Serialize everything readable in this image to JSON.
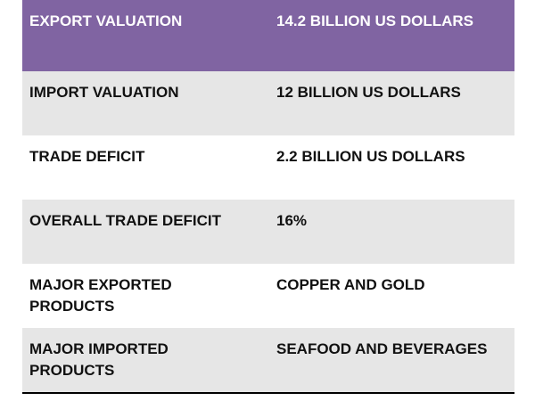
{
  "table": {
    "rows": [
      [
        "EXPORT VALUATION",
        "14.2 BILLION US DOLLARS"
      ],
      [
        "IMPORT VALUATION",
        "12 BILLION US DOLLARS"
      ],
      [
        "TRADE DEFICIT",
        "2.2 BILLION US DOLLARS"
      ],
      [
        "OVERALL TRADE DEFICIT",
        "16%"
      ],
      [
        "MAJOR EXPORTED PRODUCTS",
        "COPPER AND GOLD"
      ],
      [
        "MAJOR IMPORTED PRODUCTS",
        "SEAFOOD AND BEVERAGES"
      ]
    ]
  }
}
